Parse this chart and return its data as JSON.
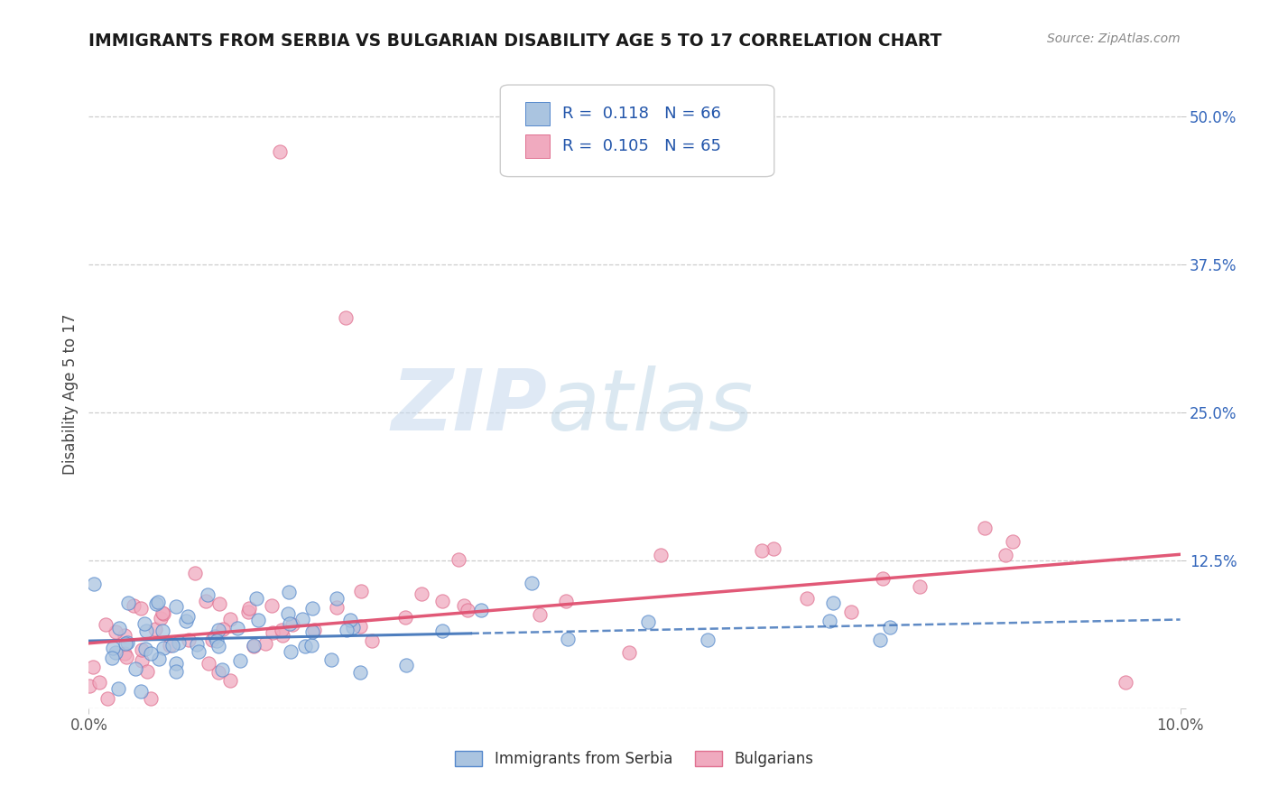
{
  "title": "IMMIGRANTS FROM SERBIA VS BULGARIAN DISABILITY AGE 5 TO 17 CORRELATION CHART",
  "source_text": "Source: ZipAtlas.com",
  "ylabel": "Disability Age 5 to 17",
  "xlim": [
    0.0,
    0.1
  ],
  "ylim": [
    0.0,
    0.53
  ],
  "x_ticks": [
    0.0,
    0.1
  ],
  "x_tick_labels": [
    "0.0%",
    "10.0%"
  ],
  "y_ticks": [
    0.0,
    0.125,
    0.25,
    0.375,
    0.5
  ],
  "y_tick_labels": [
    "",
    "12.5%",
    "25.0%",
    "37.5%",
    "50.0%"
  ],
  "background_color": "#ffffff",
  "grid_color": "#c8c8c8",
  "watermark_zip": "ZIP",
  "watermark_atlas": "atlas",
  "serbia_color": "#aac4e0",
  "bulgarian_color": "#f0aabf",
  "serbia_edge_color": "#5588cc",
  "bulgarian_edge_color": "#e07090",
  "serbia_line_color": "#4477bb",
  "bulgarian_line_color": "#e05070",
  "legend_text_color": "#2255aa",
  "tick_color_y": "#3366bb",
  "tick_color_x": "#555555",
  "legend_serbia_R": "0.118",
  "legend_serbia_N": "66",
  "legend_bulgarian_R": "0.105",
  "legend_bulgarian_N": "65",
  "legend_label1": "Immigrants from Serbia",
  "legend_label2": "Bulgarians"
}
